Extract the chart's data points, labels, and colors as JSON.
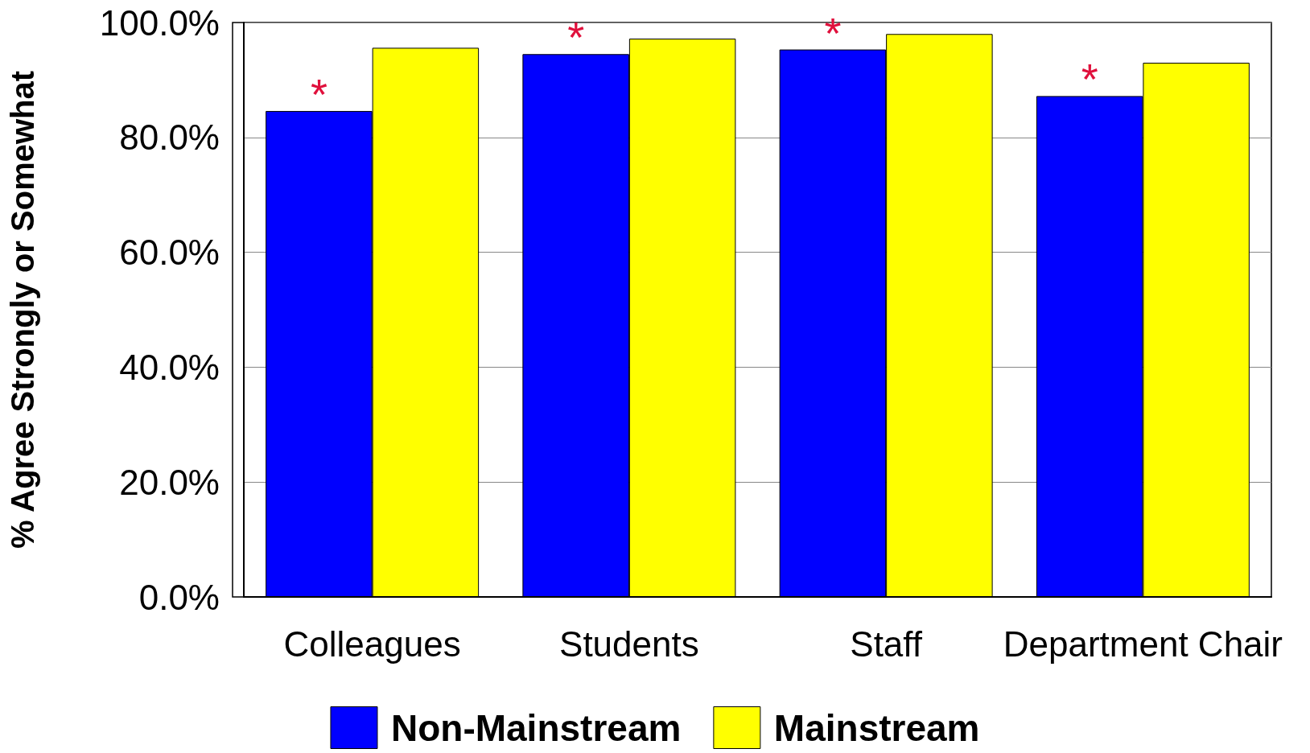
{
  "chart_data": {
    "type": "bar",
    "ylabel": "% Agree Strongly or Somewhat",
    "categories": [
      "Colleagues",
      "Students",
      "Staff",
      "Department Chair"
    ],
    "series": [
      {
        "name": "Non-Mainstream",
        "color": "#0000ff",
        "values": [
          84.6,
          94.5,
          95.3,
          87.2
        ]
      },
      {
        "name": "Mainstream",
        "color": "#ffff00",
        "values": [
          95.6,
          97.2,
          98.0,
          93.0
        ]
      }
    ],
    "ylim": [
      0,
      100
    ],
    "yticks": [
      {
        "value": 0,
        "label": "0.0%"
      },
      {
        "value": 20,
        "label": "20.0%"
      },
      {
        "value": 40,
        "label": "40.0%"
      },
      {
        "value": 60,
        "label": "60.0%"
      },
      {
        "value": 80,
        "label": "80.0%"
      },
      {
        "value": 100,
        "label": "100.0%"
      }
    ],
    "grid": "y",
    "legend": "bottom",
    "annotations": [
      {
        "text": "*",
        "x": "Colleagues",
        "y": 84.6
      },
      {
        "text": "*",
        "x": "Students",
        "y": 94.5
      },
      {
        "text": "*",
        "x": "Staff",
        "y": 95.3
      },
      {
        "text": "*",
        "x": "Department Chair",
        "y": 87.2
      }
    ]
  }
}
